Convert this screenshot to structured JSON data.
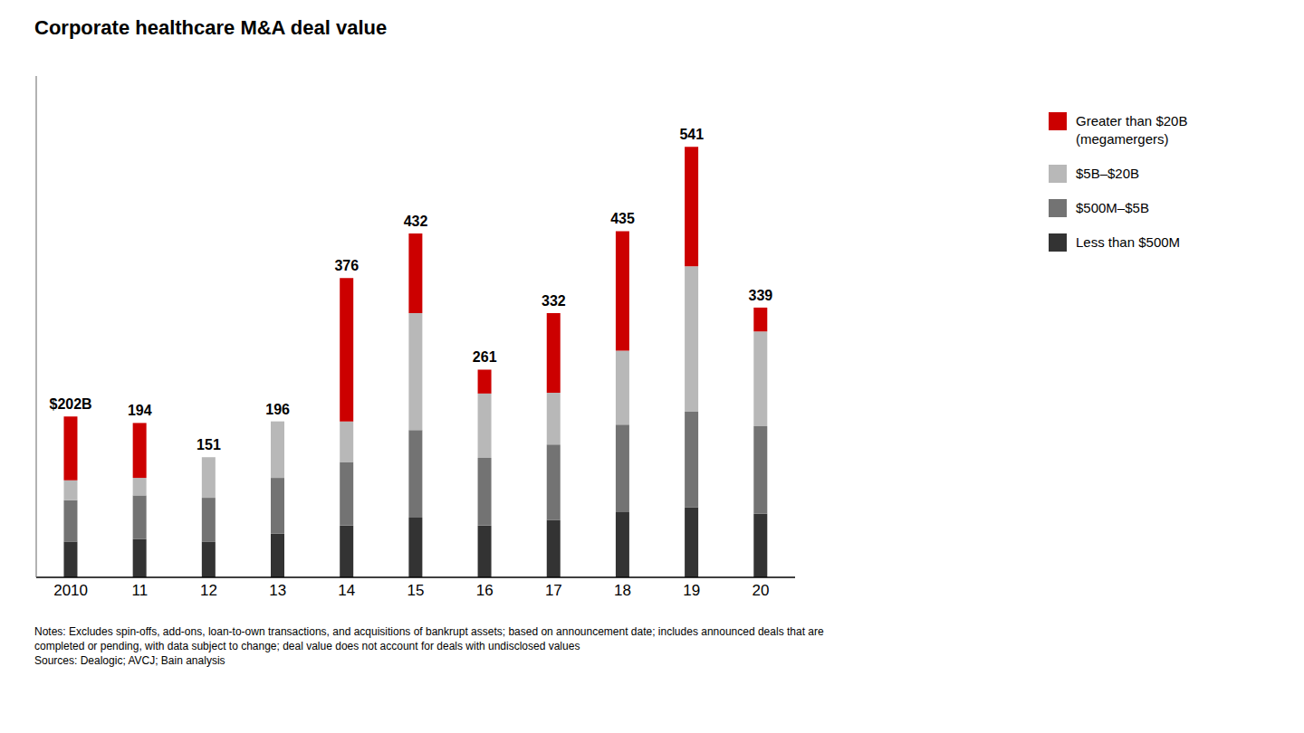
{
  "chart_data": {
    "type": "bar",
    "title": "Corporate healthcare M&A deal value",
    "categories": [
      "2010",
      "11",
      "12",
      "13",
      "14",
      "15",
      "16",
      "17",
      "18",
      "19",
      "20"
    ],
    "series": [
      {
        "name": "Less than $500M",
        "color": "#333333",
        "values": [
          45,
          48,
          45,
          55,
          65,
          75,
          65,
          72,
          82,
          88,
          80
        ]
      },
      {
        "name": "$500M–$5B",
        "color": "#737373",
        "values": [
          52,
          55,
          55,
          70,
          80,
          110,
          85,
          95,
          110,
          120,
          110
        ]
      },
      {
        "name": "$5B–$20B",
        "color": "#b8b8b8",
        "values": [
          25,
          22,
          51,
          71,
          51,
          147,
          81,
          65,
          93,
          183,
          119
        ]
      },
      {
        "name": "Greater than $20B\n(megamergers)",
        "color": "#cc0000",
        "values": [
          80,
          69,
          0,
          0,
          180,
          100,
          30,
          100,
          150,
          150,
          30
        ]
      }
    ],
    "totals": [
      202,
      194,
      151,
      196,
      376,
      432,
      261,
      332,
      435,
      541,
      339
    ],
    "total_labels": [
      "$202B",
      "194",
      "151",
      "196",
      "376",
      "432",
      "261",
      "332",
      "435",
      "541",
      "339"
    ],
    "stacked": true,
    "ylim": [
      0,
      630
    ],
    "grid": false,
    "legend": "right",
    "tick_labels": "x",
    "annotation": "Notes: Excludes spin-offs, add-ons, loan-to-own transactions, and acquisitions of bankrupt assets; based on announcement date; includes announced deals that are\ncompleted or pending, with data subject to change; deal value does not account for deals with undisclosed values\nSources: Dealogic; AVCJ; Bain analysis"
  }
}
